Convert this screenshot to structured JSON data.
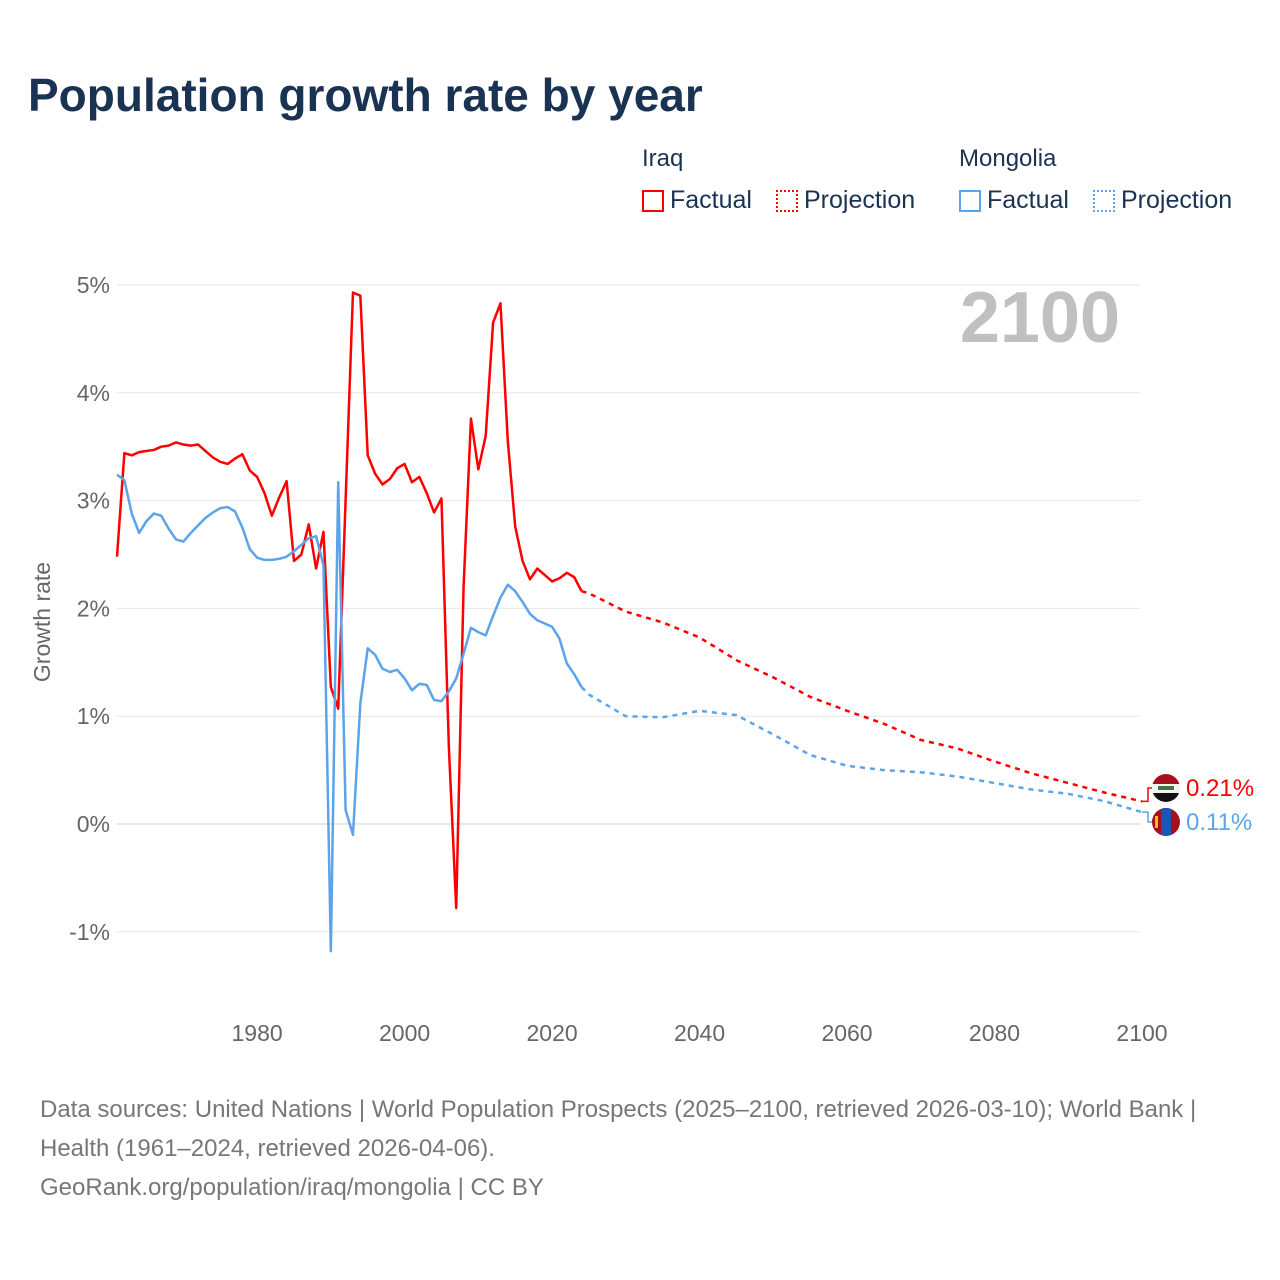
{
  "title": "Population growth rate by year",
  "legend": {
    "groups": [
      {
        "name": "Iraq",
        "factual": "Factual",
        "projection": "Projection",
        "color": "#ff0000"
      },
      {
        "name": "Mongolia",
        "factual": "Factual",
        "projection": "Projection",
        "color": "#5ba4ea"
      }
    ]
  },
  "chart_data": {
    "type": "line",
    "title": "Population growth rate by year",
    "xlabel": "",
    "ylabel": "Growth rate",
    "xlim": [
      1961,
      2100
    ],
    "ylim": [
      -1.2,
      5
    ],
    "x_ticks": [
      "1980",
      "2000",
      "2020",
      "2040",
      "2060",
      "2080",
      "2100"
    ],
    "y_ticks": [
      "-1%",
      "0%",
      "1%",
      "2%",
      "3%",
      "4%",
      "5%"
    ],
    "y_tick_values": [
      -1,
      0,
      1,
      2,
      3,
      4,
      5
    ],
    "x_tick_values": [
      1980,
      2000,
      2020,
      2040,
      2060,
      2080,
      2100
    ],
    "grid": true,
    "year_watermark": "2100",
    "series": [
      {
        "name": "Iraq",
        "color": "#ff0000",
        "end_label": "0.21%",
        "factual": {
          "start_year": 1961,
          "values": [
            2.48,
            3.44,
            3.42,
            3.45,
            3.46,
            3.47,
            3.5,
            3.51,
            3.54,
            3.52,
            3.51,
            3.52,
            3.46,
            3.4,
            3.36,
            3.34,
            3.39,
            3.43,
            3.28,
            3.22,
            3.07,
            2.86,
            3.03,
            3.18,
            2.44,
            2.5,
            2.78,
            2.37,
            2.71,
            1.27,
            1.07,
            3.0,
            4.93,
            4.9,
            3.42,
            3.25,
            3.15,
            3.2,
            3.3,
            3.34,
            3.17,
            3.22,
            3.07,
            2.89,
            3.02,
            0.72,
            -0.78,
            2.2,
            3.76,
            3.29,
            3.6,
            4.65,
            4.83,
            3.55,
            2.76,
            2.44,
            2.27,
            2.37,
            2.31,
            2.25,
            2.28,
            2.33,
            2.29,
            2.16
          ]
        },
        "projection": {
          "years": [
            2024,
            2025,
            2030,
            2035,
            2040,
            2045,
            2050,
            2055,
            2060,
            2065,
            2070,
            2075,
            2080,
            2085,
            2090,
            2095,
            2100
          ],
          "values": [
            2.16,
            2.14,
            1.97,
            1.87,
            1.73,
            1.52,
            1.36,
            1.18,
            1.05,
            0.93,
            0.78,
            0.7,
            0.58,
            0.47,
            0.38,
            0.29,
            0.21
          ]
        }
      },
      {
        "name": "Mongolia",
        "color": "#5ba4ea",
        "end_label": "0.11%",
        "factual": {
          "start_year": 1961,
          "values": [
            3.24,
            3.19,
            2.88,
            2.7,
            2.81,
            2.88,
            2.86,
            2.74,
            2.64,
            2.62,
            2.7,
            2.77,
            2.84,
            2.89,
            2.93,
            2.94,
            2.9,
            2.75,
            2.55,
            2.47,
            2.45,
            2.45,
            2.46,
            2.48,
            2.53,
            2.59,
            2.65,
            2.67,
            2.4,
            -1.18,
            3.17,
            0.13,
            -0.1,
            1.12,
            1.63,
            1.57,
            1.44,
            1.41,
            1.43,
            1.35,
            1.24,
            1.3,
            1.29,
            1.15,
            1.14,
            1.23,
            1.35,
            1.58,
            1.82,
            1.78,
            1.75,
            1.93,
            2.1,
            2.22,
            2.16,
            2.06,
            1.95,
            1.89,
            1.86,
            1.83,
            1.72,
            1.49,
            1.39,
            1.27
          ]
        },
        "projection": {
          "years": [
            2024,
            2025,
            2030,
            2035,
            2040,
            2045,
            2050,
            2055,
            2060,
            2065,
            2070,
            2075,
            2080,
            2085,
            2090,
            2095,
            2100
          ],
          "values": [
            1.27,
            1.2,
            1.0,
            0.99,
            1.05,
            1.01,
            0.83,
            0.64,
            0.54,
            0.5,
            0.48,
            0.44,
            0.38,
            0.32,
            0.28,
            0.21,
            0.11
          ]
        }
      }
    ]
  },
  "footer": {
    "sources": "Data sources: United Nations | World Population Prospects (2025–2100, retrieved 2026-03-10); World Bank | Health (1961–2024, retrieved 2026-04-06).",
    "credit": "GeoRank.org/population/iraq/mongolia | CC BY"
  }
}
